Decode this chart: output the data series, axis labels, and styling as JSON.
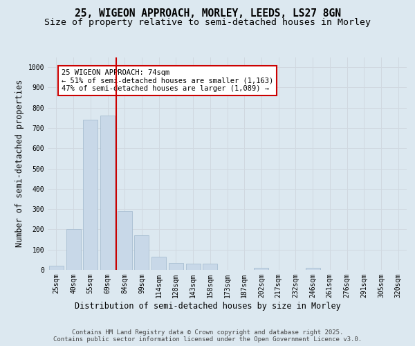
{
  "title_line1": "25, WIGEON APPROACH, MORLEY, LEEDS, LS27 8GN",
  "title_line2": "Size of property relative to semi-detached houses in Morley",
  "xlabel": "Distribution of semi-detached houses by size in Morley",
  "ylabel": "Number of semi-detached properties",
  "footer_line1": "Contains HM Land Registry data © Crown copyright and database right 2025.",
  "footer_line2": "Contains public sector information licensed under the Open Government Licence v3.0.",
  "categories": [
    "25sqm",
    "40sqm",
    "55sqm",
    "69sqm",
    "84sqm",
    "99sqm",
    "114sqm",
    "128sqm",
    "143sqm",
    "158sqm",
    "173sqm",
    "187sqm",
    "202sqm",
    "217sqm",
    "232sqm",
    "246sqm",
    "261sqm",
    "276sqm",
    "291sqm",
    "305sqm",
    "320sqm"
  ],
  "values": [
    20,
    200,
    740,
    760,
    290,
    170,
    65,
    35,
    30,
    30,
    0,
    0,
    10,
    0,
    0,
    10,
    0,
    0,
    0,
    0,
    0
  ],
  "bar_color": "#c8d8e8",
  "bar_edge_color": "#a0b8cc",
  "grid_color": "#d0d8e0",
  "property_line_x": 3.5,
  "annotation_text_line1": "25 WIGEON APPROACH: 74sqm",
  "annotation_text_line2": "← 51% of semi-detached houses are smaller (1,163)",
  "annotation_text_line3": "47% of semi-detached houses are larger (1,089) →",
  "annotation_box_color": "#ffffff",
  "annotation_border_color": "#cc0000",
  "vline_color": "#cc0000",
  "ylim": [
    0,
    1050
  ],
  "yticks": [
    0,
    100,
    200,
    300,
    400,
    500,
    600,
    700,
    800,
    900,
    1000
  ],
  "background_color": "#dce8f0",
  "plot_background_color": "#dce8f0",
  "title_fontsize": 10.5,
  "subtitle_fontsize": 9.5,
  "axis_label_fontsize": 8.5,
  "tick_fontsize": 7,
  "annotation_fontsize": 7.5,
  "footer_fontsize": 6.5
}
